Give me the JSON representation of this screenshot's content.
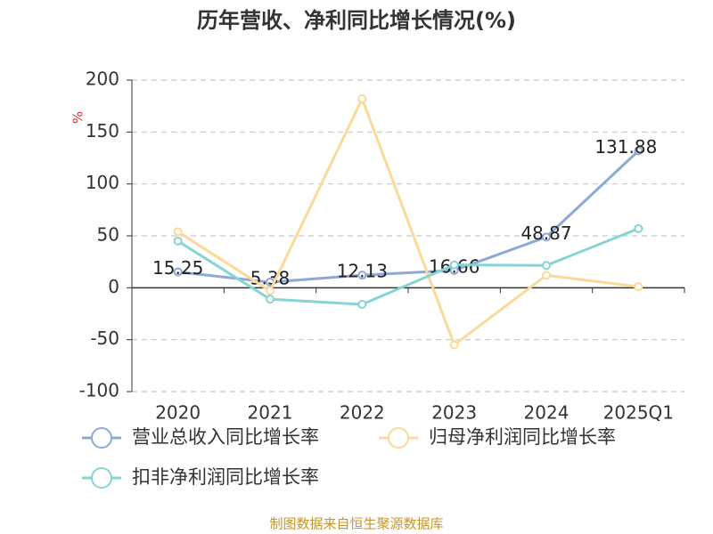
{
  "chart_data": {
    "type": "line",
    "title": "历年营收、净利同比增长情况(%)",
    "ylabel": "%",
    "categories": [
      "2020",
      "2021",
      "2022",
      "2023",
      "2024",
      "2025Q1"
    ],
    "series": [
      {
        "name": "营业总收入同比增长率",
        "color": "#8fa9d6",
        "values": [
          15.25,
          5.38,
          12.13,
          16.66,
          48.87,
          131.88
        ],
        "data_labels": true
      },
      {
        "name": "归母净利润同比增长率",
        "color": "#fcd99a",
        "values": [
          54,
          -3,
          182,
          -55,
          12,
          1
        ]
      },
      {
        "name": "扣非净利润同比增长率",
        "color": "#86d4d4",
        "values": [
          45,
          -11,
          -16,
          22,
          21.5,
          57
        ]
      }
    ],
    "ylim": [
      -100,
      200
    ],
    "yticks": [
      -100,
      -50,
      0,
      50,
      100,
      150,
      200
    ],
    "grid": true,
    "source": "制图数据来自恒生聚源数据库"
  }
}
